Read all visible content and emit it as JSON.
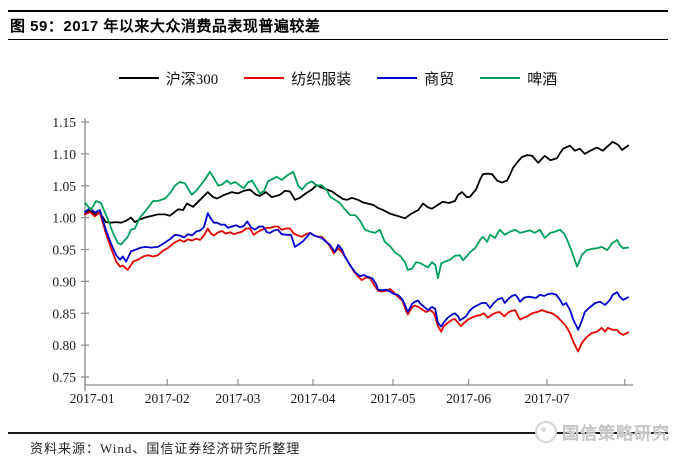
{
  "header": {
    "title": "图 59：2017 年以来大众消费品表现普遍较差"
  },
  "footer": {
    "source": "资料来源：Wind、国信证券经济研究所整理",
    "watermark": "国信策略研究"
  },
  "colors": {
    "csi300": "#000000",
    "textile": "#e60000",
    "commerce": "#0000cc",
    "beer": "#00a05a",
    "axis": "#8c8c8c",
    "tick_text": "#1a1a1a"
  },
  "chart_data": {
    "type": "line",
    "title": "图 59：2017 年以来大众消费品表现普遍较差",
    "xlabel": "",
    "ylabel": "",
    "ylim": [
      0.75,
      1.15
    ],
    "grid": false,
    "legend_position": "top",
    "y_axis": {
      "min": 0.75,
      "max": 1.15,
      "step": 0.05,
      "ticks": [
        1.15,
        1.1,
        1.05,
        1.0,
        0.95,
        0.9,
        0.85,
        0.8,
        0.75
      ]
    },
    "x_axis": {
      "labels": [
        "2017-01",
        "2017-02",
        "2017-03",
        "2017-04",
        "2017-05",
        "2017-06",
        "2017-07"
      ],
      "label_t": [
        0.013,
        0.15,
        0.279,
        0.416,
        0.562,
        0.7,
        0.843
      ],
      "tick_t": [
        0.0,
        0.15,
        0.279,
        0.416,
        0.562,
        0.7,
        0.843,
        0.985
      ]
    },
    "series": [
      {
        "name": "沪深300",
        "color": "#000000",
        "t": [
          0.0,
          0.009,
          0.018,
          0.027,
          0.038,
          0.047,
          0.057,
          0.066,
          0.075,
          0.084,
          0.091,
          0.1,
          0.109,
          0.119,
          0.133,
          0.146,
          0.155,
          0.17,
          0.179,
          0.186,
          0.197,
          0.21,
          0.224,
          0.234,
          0.241,
          0.255,
          0.268,
          0.279,
          0.29,
          0.301,
          0.312,
          0.319,
          0.33,
          0.341,
          0.356,
          0.365,
          0.374,
          0.383,
          0.392,
          0.403,
          0.414,
          0.423,
          0.432,
          0.442,
          0.451,
          0.462,
          0.471,
          0.478,
          0.487,
          0.498,
          0.507,
          0.516,
          0.526,
          0.535,
          0.544,
          0.557,
          0.569,
          0.584,
          0.595,
          0.608,
          0.617,
          0.626,
          0.633,
          0.644,
          0.653,
          0.664,
          0.675,
          0.681,
          0.688,
          0.697,
          0.703,
          0.714,
          0.721,
          0.726,
          0.735,
          0.743,
          0.752,
          0.761,
          0.77,
          0.776,
          0.781,
          0.79,
          0.797,
          0.807,
          0.816,
          0.827,
          0.839,
          0.849,
          0.861,
          0.872,
          0.885,
          0.894,
          0.903,
          0.912,
          0.922,
          0.934,
          0.945,
          0.954,
          0.963,
          0.973,
          0.98,
          0.991
        ],
        "v": [
          1.005,
          1.012,
          1.005,
          1.008,
          0.993,
          0.992,
          0.993,
          0.992,
          0.995,
          1.0,
          0.993,
          0.997,
          1.0,
          1.002,
          1.005,
          1.005,
          1.003,
          1.013,
          1.012,
          1.022,
          1.017,
          1.028,
          1.04,
          1.032,
          1.03,
          1.036,
          1.04,
          1.038,
          1.042,
          1.044,
          1.036,
          1.034,
          1.04,
          1.032,
          1.036,
          1.042,
          1.041,
          1.028,
          1.031,
          1.038,
          1.044,
          1.051,
          1.047,
          1.044,
          1.041,
          1.034,
          1.029,
          1.028,
          1.031,
          1.028,
          1.024,
          1.022,
          1.02,
          1.015,
          1.012,
          1.006,
          1.003,
          0.999,
          1.006,
          1.012,
          1.022,
          1.016,
          1.014,
          1.02,
          1.025,
          1.023,
          1.026,
          1.036,
          1.04,
          1.032,
          1.033,
          1.045,
          1.06,
          1.068,
          1.069,
          1.068,
          1.058,
          1.055,
          1.058,
          1.068,
          1.078,
          1.088,
          1.095,
          1.098,
          1.097,
          1.086,
          1.097,
          1.09,
          1.093,
          1.108,
          1.113,
          1.105,
          1.108,
          1.1,
          1.105,
          1.11,
          1.105,
          1.112,
          1.119,
          1.114,
          1.106,
          1.113
        ]
      },
      {
        "name": "纺织服装",
        "color": "#e60000",
        "t": [
          0.0,
          0.009,
          0.018,
          0.027,
          0.038,
          0.047,
          0.057,
          0.064,
          0.069,
          0.078,
          0.088,
          0.097,
          0.106,
          0.115,
          0.124,
          0.133,
          0.142,
          0.151,
          0.159,
          0.166,
          0.173,
          0.181,
          0.188,
          0.195,
          0.203,
          0.21,
          0.217,
          0.224,
          0.23,
          0.235,
          0.243,
          0.25,
          0.257,
          0.265,
          0.272,
          0.279,
          0.287,
          0.294,
          0.301,
          0.308,
          0.316,
          0.323,
          0.33,
          0.338,
          0.345,
          0.352,
          0.359,
          0.367,
          0.374,
          0.381,
          0.389,
          0.396,
          0.403,
          0.411,
          0.418,
          0.425,
          0.432,
          0.44,
          0.447,
          0.454,
          0.462,
          0.469,
          0.476,
          0.484,
          0.491,
          0.498,
          0.505,
          0.513,
          0.52,
          0.527,
          0.535,
          0.542,
          0.549,
          0.557,
          0.564,
          0.571,
          0.579,
          0.584,
          0.589,
          0.597,
          0.602,
          0.608,
          0.615,
          0.622,
          0.63,
          0.637,
          0.644,
          0.65,
          0.655,
          0.662,
          0.67,
          0.675,
          0.681,
          0.686,
          0.692,
          0.699,
          0.706,
          0.714,
          0.721,
          0.728,
          0.735,
          0.743,
          0.75,
          0.757,
          0.765,
          0.772,
          0.779,
          0.785,
          0.79,
          0.794,
          0.801,
          0.807,
          0.816,
          0.825,
          0.834,
          0.843,
          0.852,
          0.861,
          0.87,
          0.876,
          0.885,
          0.891,
          0.9,
          0.907,
          0.916,
          0.925,
          0.934,
          0.943,
          0.949,
          0.954,
          0.963,
          0.971,
          0.976,
          0.982,
          0.991
        ],
        "v": [
          1.005,
          1.009,
          1.002,
          1.008,
          0.976,
          0.953,
          0.931,
          0.923,
          0.925,
          0.918,
          0.931,
          0.934,
          0.939,
          0.941,
          0.939,
          0.941,
          0.948,
          0.952,
          0.958,
          0.962,
          0.965,
          0.962,
          0.966,
          0.964,
          0.967,
          0.965,
          0.972,
          0.983,
          0.975,
          0.972,
          0.977,
          0.979,
          0.975,
          0.977,
          0.974,
          0.976,
          0.978,
          0.983,
          0.983,
          0.973,
          0.978,
          0.981,
          0.984,
          0.984,
          0.986,
          0.986,
          0.981,
          0.983,
          0.983,
          0.975,
          0.972,
          0.97,
          0.974,
          0.976,
          0.972,
          0.97,
          0.97,
          0.963,
          0.955,
          0.944,
          0.952,
          0.946,
          0.937,
          0.925,
          0.915,
          0.908,
          0.902,
          0.906,
          0.905,
          0.895,
          0.885,
          0.884,
          0.885,
          0.888,
          0.882,
          0.876,
          0.87,
          0.858,
          0.848,
          0.86,
          0.862,
          0.86,
          0.856,
          0.852,
          0.855,
          0.85,
          0.83,
          0.821,
          0.83,
          0.835,
          0.84,
          0.841,
          0.835,
          0.83,
          0.835,
          0.84,
          0.843,
          0.846,
          0.847,
          0.85,
          0.843,
          0.848,
          0.851,
          0.852,
          0.845,
          0.851,
          0.854,
          0.855,
          0.846,
          0.84,
          0.843,
          0.845,
          0.85,
          0.852,
          0.855,
          0.852,
          0.85,
          0.845,
          0.837,
          0.832,
          0.819,
          0.805,
          0.79,
          0.804,
          0.813,
          0.819,
          0.821,
          0.827,
          0.821,
          0.827,
          0.824,
          0.824,
          0.819,
          0.816,
          0.82
        ]
      },
      {
        "name": "商贸",
        "color": "#0000cc",
        "t": [
          0.0,
          0.009,
          0.018,
          0.027,
          0.038,
          0.047,
          0.057,
          0.064,
          0.069,
          0.075,
          0.084,
          0.093,
          0.102,
          0.111,
          0.12,
          0.133,
          0.141,
          0.148,
          0.155,
          0.164,
          0.173,
          0.181,
          0.188,
          0.195,
          0.203,
          0.21,
          0.217,
          0.224,
          0.23,
          0.235,
          0.241,
          0.248,
          0.255,
          0.261,
          0.268,
          0.276,
          0.283,
          0.29,
          0.296,
          0.303,
          0.31,
          0.318,
          0.325,
          0.332,
          0.338,
          0.345,
          0.352,
          0.359,
          0.369,
          0.376,
          0.383,
          0.39,
          0.398,
          0.405,
          0.411,
          0.418,
          0.425,
          0.432,
          0.44,
          0.447,
          0.456,
          0.462,
          0.469,
          0.474,
          0.484,
          0.493,
          0.502,
          0.509,
          0.516,
          0.524,
          0.531,
          0.535,
          0.542,
          0.549,
          0.557,
          0.564,
          0.571,
          0.579,
          0.584,
          0.589,
          0.597,
          0.602,
          0.608,
          0.611,
          0.619,
          0.626,
          0.633,
          0.639,
          0.644,
          0.65,
          0.655,
          0.662,
          0.67,
          0.675,
          0.681,
          0.684,
          0.69,
          0.695,
          0.703,
          0.71,
          0.717,
          0.724,
          0.732,
          0.739,
          0.746,
          0.754,
          0.761,
          0.766,
          0.772,
          0.779,
          0.785,
          0.79,
          0.794,
          0.801,
          0.808,
          0.816,
          0.823,
          0.83,
          0.838,
          0.845,
          0.852,
          0.86,
          0.867,
          0.872,
          0.878,
          0.885,
          0.891,
          0.9,
          0.907,
          0.912,
          0.922,
          0.931,
          0.94,
          0.949,
          0.958,
          0.963,
          0.971,
          0.976,
          0.982,
          0.991
        ],
        "v": [
          1.009,
          1.015,
          1.008,
          1.012,
          0.981,
          0.96,
          0.941,
          0.934,
          0.939,
          0.931,
          0.947,
          0.95,
          0.953,
          0.954,
          0.953,
          0.954,
          0.958,
          0.962,
          0.966,
          0.973,
          0.972,
          0.969,
          0.974,
          0.972,
          0.978,
          0.98,
          0.985,
          1.007,
          0.998,
          0.992,
          0.992,
          0.989,
          0.989,
          0.984,
          0.986,
          0.988,
          0.985,
          0.987,
          0.994,
          0.985,
          0.981,
          0.986,
          0.986,
          0.977,
          0.976,
          0.98,
          0.981,
          0.974,
          0.973,
          0.973,
          0.954,
          0.958,
          0.963,
          0.97,
          0.976,
          0.972,
          0.97,
          0.968,
          0.962,
          0.957,
          0.946,
          0.957,
          0.95,
          0.939,
          0.925,
          0.914,
          0.908,
          0.91,
          0.907,
          0.905,
          0.896,
          0.887,
          0.886,
          0.887,
          0.884,
          0.88,
          0.879,
          0.872,
          0.863,
          0.852,
          0.865,
          0.868,
          0.87,
          0.866,
          0.86,
          0.855,
          0.86,
          0.857,
          0.835,
          0.829,
          0.836,
          0.843,
          0.848,
          0.85,
          0.845,
          0.839,
          0.842,
          0.845,
          0.855,
          0.86,
          0.863,
          0.866,
          0.866,
          0.858,
          0.866,
          0.872,
          0.874,
          0.866,
          0.872,
          0.877,
          0.879,
          0.874,
          0.868,
          0.874,
          0.876,
          0.875,
          0.874,
          0.879,
          0.877,
          0.88,
          0.881,
          0.879,
          0.871,
          0.863,
          0.866,
          0.855,
          0.84,
          0.824,
          0.839,
          0.852,
          0.86,
          0.866,
          0.868,
          0.863,
          0.871,
          0.879,
          0.883,
          0.876,
          0.871,
          0.875
        ]
      },
      {
        "name": "啤酒",
        "color": "#00a05a",
        "t": [
          0.0,
          0.011,
          0.02,
          0.029,
          0.042,
          0.051,
          0.06,
          0.066,
          0.073,
          0.078,
          0.084,
          0.091,
          0.1,
          0.109,
          0.119,
          0.124,
          0.133,
          0.146,
          0.155,
          0.164,
          0.173,
          0.182,
          0.192,
          0.195,
          0.203,
          0.21,
          0.219,
          0.228,
          0.235,
          0.243,
          0.25,
          0.259,
          0.266,
          0.274,
          0.283,
          0.29,
          0.297,
          0.305,
          0.312,
          0.319,
          0.327,
          0.334,
          0.341,
          0.35,
          0.359,
          0.369,
          0.38,
          0.389,
          0.396,
          0.405,
          0.414,
          0.423,
          0.432,
          0.442,
          0.447,
          0.456,
          0.465,
          0.474,
          0.484,
          0.493,
          0.502,
          0.511,
          0.52,
          0.529,
          0.538,
          0.547,
          0.557,
          0.566,
          0.575,
          0.584,
          0.589,
          0.597,
          0.604,
          0.611,
          0.619,
          0.626,
          0.633,
          0.639,
          0.644,
          0.65,
          0.657,
          0.666,
          0.675,
          0.684,
          0.69,
          0.697,
          0.703,
          0.712,
          0.721,
          0.726,
          0.734,
          0.739,
          0.748,
          0.757,
          0.766,
          0.776,
          0.785,
          0.794,
          0.803,
          0.812,
          0.821,
          0.83,
          0.839,
          0.849,
          0.858,
          0.867,
          0.874,
          0.88,
          0.889,
          0.898,
          0.907,
          0.916,
          0.925,
          0.934,
          0.943,
          0.953,
          0.962,
          0.971,
          0.976,
          0.982,
          0.991
        ],
        "v": [
          1.023,
          1.012,
          1.026,
          1.023,
          0.997,
          0.976,
          0.96,
          0.958,
          0.965,
          0.97,
          0.981,
          0.983,
          1.0,
          1.009,
          1.02,
          1.026,
          1.026,
          1.03,
          1.038,
          1.05,
          1.056,
          1.054,
          1.04,
          1.036,
          1.042,
          1.05,
          1.06,
          1.072,
          1.062,
          1.05,
          1.052,
          1.058,
          1.053,
          1.056,
          1.05,
          1.046,
          1.055,
          1.058,
          1.048,
          1.038,
          1.042,
          1.057,
          1.06,
          1.064,
          1.059,
          1.066,
          1.072,
          1.05,
          1.044,
          1.053,
          1.057,
          1.05,
          1.051,
          1.042,
          1.033,
          1.028,
          1.023,
          1.013,
          1.004,
          1.004,
          0.995,
          0.981,
          0.978,
          0.976,
          0.981,
          0.962,
          0.955,
          0.945,
          0.94,
          0.93,
          0.918,
          0.92,
          0.93,
          0.929,
          0.925,
          0.922,
          0.93,
          0.926,
          0.905,
          0.928,
          0.931,
          0.934,
          0.94,
          0.941,
          0.933,
          0.94,
          0.946,
          0.952,
          0.965,
          0.97,
          0.962,
          0.973,
          0.968,
          0.981,
          0.973,
          0.978,
          0.981,
          0.976,
          0.978,
          0.98,
          0.976,
          0.981,
          0.968,
          0.976,
          0.978,
          0.981,
          0.975,
          0.965,
          0.945,
          0.923,
          0.942,
          0.949,
          0.951,
          0.952,
          0.954,
          0.949,
          0.96,
          0.965,
          0.957,
          0.952,
          0.953
        ]
      }
    ]
  }
}
